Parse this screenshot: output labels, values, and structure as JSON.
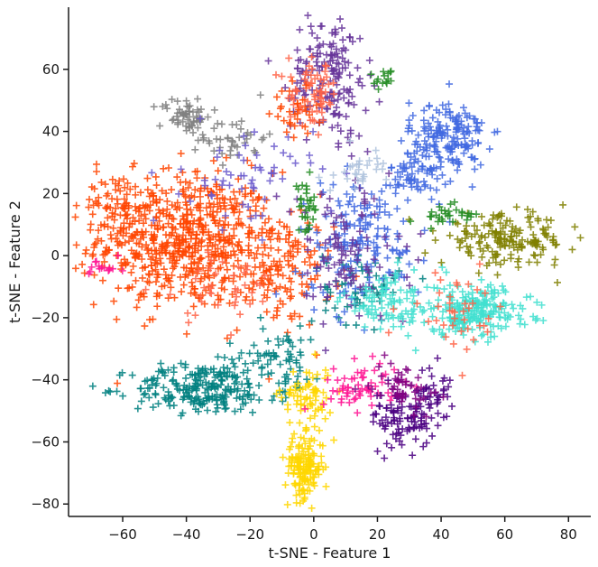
{
  "chart_data": {
    "type": "scatter",
    "marker": "+",
    "title": "",
    "xlabel": "t-SNE - Feature 1",
    "ylabel": "t-SNE - Feature 2",
    "xlim": [
      -77,
      87
    ],
    "ylim": [
      -84,
      80
    ],
    "xticks": [
      -60,
      -40,
      -20,
      0,
      20,
      40,
      60,
      80
    ],
    "yticks": [
      -80,
      -60,
      -40,
      -20,
      0,
      20,
      40,
      60
    ],
    "xtick_labels": [
      "−60",
      "−40",
      "−20",
      "0",
      "20",
      "40",
      "60",
      "80"
    ],
    "ytick_labels": [
      "−80",
      "−60",
      "−40",
      "−20",
      "0",
      "20",
      "40",
      "60"
    ],
    "grid": false,
    "legend": "none",
    "clusters": [
      {
        "color": "#ff4500",
        "center": [
          -40,
          5
        ],
        "spread": [
          14,
          11
        ],
        "count": 620
      },
      {
        "color": "#ff4500",
        "center": [
          -10,
          -5
        ],
        "spread": [
          8,
          9
        ],
        "count": 130
      },
      {
        "color": "#ff4500",
        "center": [
          -62,
          15
        ],
        "spread": [
          6,
          6
        ],
        "count": 70
      },
      {
        "color": "#808080",
        "center": [
          -40,
          45
        ],
        "spread": [
          4,
          3
        ],
        "count": 60
      },
      {
        "color": "#808080",
        "center": [
          -25,
          38
        ],
        "spread": [
          5,
          4
        ],
        "count": 40
      },
      {
        "color": "#008080",
        "center": [
          -35,
          -43
        ],
        "spread": [
          11,
          4
        ],
        "count": 220
      },
      {
        "color": "#008080",
        "center": [
          -12,
          -33
        ],
        "spread": [
          8,
          6
        ],
        "count": 80
      },
      {
        "color": "#008080",
        "center": [
          15,
          -10
        ],
        "spread": [
          6,
          6
        ],
        "count": 60
      },
      {
        "color": "#ffd700",
        "center": [
          -3,
          -68
        ],
        "spread": [
          3,
          5
        ],
        "count": 150
      },
      {
        "color": "#ffd700",
        "center": [
          -2,
          -45
        ],
        "spread": [
          4,
          5
        ],
        "count": 70
      },
      {
        "color": "#ff1493",
        "center": [
          15,
          -42
        ],
        "spread": [
          6,
          4
        ],
        "count": 60
      },
      {
        "color": "#ff1493",
        "center": [
          -66,
          -5
        ],
        "spread": [
          3,
          2
        ],
        "count": 15
      },
      {
        "color": "#4b0082",
        "center": [
          28,
          -52
        ],
        "spread": [
          5,
          5
        ],
        "count": 90
      },
      {
        "color": "#4b0082",
        "center": [
          37,
          -45
        ],
        "spread": [
          3,
          5
        ],
        "count": 40
      },
      {
        "color": "#800080",
        "center": [
          28,
          -42
        ],
        "spread": [
          5,
          4
        ],
        "count": 50
      },
      {
        "color": "#4169e1",
        "center": [
          42,
          38
        ],
        "spread": [
          6,
          6
        ],
        "count": 170
      },
      {
        "color": "#4169e1",
        "center": [
          32,
          26
        ],
        "spread": [
          4,
          4
        ],
        "count": 60
      },
      {
        "color": "#4169e1",
        "center": [
          15,
          5
        ],
        "spread": [
          10,
          10
        ],
        "count": 160
      },
      {
        "color": "#663399",
        "center": [
          5,
          58
        ],
        "spread": [
          6,
          10
        ],
        "count": 170
      },
      {
        "color": "#663399",
        "center": [
          10,
          0
        ],
        "spread": [
          10,
          12
        ],
        "count": 110
      },
      {
        "color": "#6a5acd",
        "center": [
          -20,
          25
        ],
        "spread": [
          10,
          8
        ],
        "count": 60
      },
      {
        "color": "#40e0d0",
        "center": [
          50,
          -18
        ],
        "spread": [
          9,
          4
        ],
        "count": 220
      },
      {
        "color": "#40e0d0",
        "center": [
          25,
          -15
        ],
        "spread": [
          8,
          5
        ],
        "count": 90
      },
      {
        "color": "#808000",
        "center": [
          60,
          5
        ],
        "spread": [
          10,
          4
        ],
        "count": 170
      },
      {
        "color": "#228b22",
        "center": [
          -2,
          15
        ],
        "spread": [
          2,
          4
        ],
        "count": 30
      },
      {
        "color": "#228b22",
        "center": [
          22,
          57
        ],
        "spread": [
          1.5,
          1.5
        ],
        "count": 15
      },
      {
        "color": "#228b22",
        "center": [
          42,
          13
        ],
        "spread": [
          5,
          2
        ],
        "count": 30
      },
      {
        "color": "#ff6347",
        "center": [
          0,
          52
        ],
        "spread": [
          4,
          5
        ],
        "count": 70
      },
      {
        "color": "#ff6347",
        "center": [
          45,
          -18
        ],
        "spread": [
          8,
          6
        ],
        "count": 40
      },
      {
        "color": "#ff6347",
        "center": [
          -30,
          -10
        ],
        "spread": [
          10,
          6
        ],
        "count": 40
      },
      {
        "color": "#ff4500",
        "center": [
          -6,
          45
        ],
        "spread": [
          3,
          4
        ],
        "count": 30
      },
      {
        "color": "#b0c4de",
        "center": [
          15,
          28
        ],
        "spread": [
          4,
          3
        ],
        "count": 30
      }
    ]
  }
}
